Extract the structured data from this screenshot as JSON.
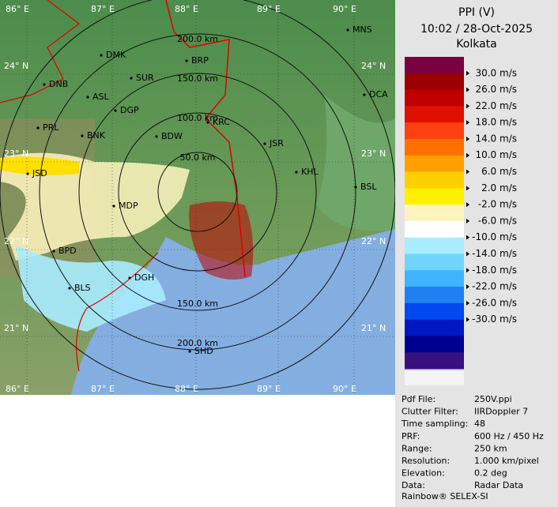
{
  "title": {
    "product": "PPI (V)",
    "time": "10:02 / 28-Oct-2025",
    "station": "Kolkata"
  },
  "legend": {
    "colors": [
      "#7a0042",
      "#9a0000",
      "#c00000",
      "#e01000",
      "#ff4010",
      "#ff7000",
      "#ffa000",
      "#ffd000",
      "#fff000",
      "#fff4c0",
      "#ffffff",
      "#a8ecff",
      "#70d4ff",
      "#40b4ff",
      "#2080f0",
      "#0048f0",
      "#0018c0",
      "#000090",
      "#3a1080"
    ],
    "labels": [
      "30.0 m/s",
      "26.0 m/s",
      "22.0 m/s",
      "18.0 m/s",
      "14.0 m/s",
      "10.0 m/s",
      "6.0 m/s",
      "2.0 m/s",
      "-2.0 m/s",
      "-6.0 m/s",
      "-10.0 m/s",
      "-14.0 m/s",
      "-18.0 m/s",
      "-22.0 m/s",
      "-26.0 m/s",
      "-30.0 m/s"
    ]
  },
  "map": {
    "longitudes": [
      "86° E",
      "87° E",
      "88° E",
      "89° E",
      "90° E"
    ],
    "latitudes": [
      "24° N",
      "23° N",
      "22° N",
      "21° N"
    ],
    "rings": [
      "50.0 km",
      "100.0 km",
      "150.0 km",
      "200.0 km"
    ],
    "cities": [
      "MNS",
      "DMK",
      "BRP",
      "SUR",
      "DNB",
      "ASL",
      "DGP",
      "DCA",
      "PRL",
      "BNK",
      "KRC",
      "BDW",
      "JSR",
      "KHL",
      "JSD",
      "BSL",
      "MDP",
      "BPD",
      "DGH",
      "BLS",
      "SHD"
    ]
  },
  "info": {
    "rows": [
      [
        "Pdf File:",
        "250V.ppi"
      ],
      [
        "Clutter Filter:",
        "IIRDoppler 7"
      ],
      [
        "Time sampling:",
        "48"
      ],
      [
        "PRF:",
        "600 Hz / 450 Hz"
      ],
      [
        "Range:",
        "250 km"
      ],
      [
        "Resolution:",
        "1.000 km/pixel"
      ],
      [
        "Elevation:",
        "0.2 deg"
      ],
      [
        "Data:",
        "Radar Data"
      ]
    ],
    "footer": "Rainbow® SELEX-SI"
  }
}
